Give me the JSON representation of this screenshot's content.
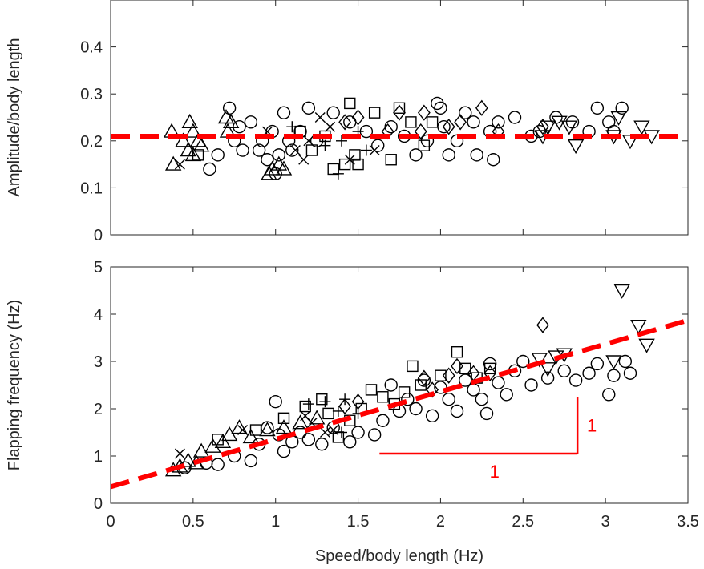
{
  "chart_data": [
    {
      "type": "scatter",
      "xlabel": "",
      "ylabel": "Amplitude/body length",
      "xlim": [
        0,
        3.5
      ],
      "ylim": [
        0,
        0.5
      ],
      "xticks": [],
      "yticks": [
        "0",
        "0.1",
        "0.2",
        "0.3",
        "0.4"
      ],
      "grid": false,
      "fit_line": {
        "type": "constant",
        "y": 0.21,
        "color": "#ff0000",
        "style": "dashed"
      },
      "series": [
        {
          "marker": "triangle-up",
          "points": [
            [
              0.37,
              0.22
            ],
            [
              0.38,
              0.15
            ],
            [
              0.44,
              0.2
            ],
            [
              0.47,
              0.18
            ],
            [
              0.48,
              0.24
            ],
            [
              0.5,
              0.22
            ],
            [
              0.5,
              0.17
            ],
            [
              0.53,
              0.2
            ],
            [
              0.55,
              0.19
            ],
            [
              0.7,
              0.25
            ],
            [
              0.71,
              0.22
            ],
            [
              0.73,
              0.24
            ],
            [
              0.96,
              0.13
            ],
            [
              0.98,
              0.14
            ],
            [
              1.02,
              0.15
            ],
            [
              1.05,
              0.14
            ]
          ]
        },
        {
          "marker": "circle",
          "points": [
            [
              0.6,
              0.14
            ],
            [
              0.65,
              0.17
            ],
            [
              0.72,
              0.27
            ],
            [
              0.75,
              0.2
            ],
            [
              0.78,
              0.23
            ],
            [
              0.8,
              0.18
            ],
            [
              0.85,
              0.24
            ],
            [
              0.9,
              0.18
            ],
            [
              0.92,
              0.2
            ],
            [
              0.95,
              0.16
            ],
            [
              0.98,
              0.22
            ],
            [
              1.0,
              0.13
            ],
            [
              1.02,
              0.17
            ],
            [
              1.05,
              0.26
            ],
            [
              1.08,
              0.2
            ],
            [
              1.1,
              0.18
            ],
            [
              1.15,
              0.22
            ],
            [
              1.2,
              0.27
            ],
            [
              1.25,
              0.2
            ],
            [
              1.35,
              0.26
            ],
            [
              1.45,
              0.24
            ],
            [
              1.55,
              0.22
            ],
            [
              1.62,
              0.19
            ],
            [
              1.7,
              0.23
            ],
            [
              1.78,
              0.21
            ],
            [
              1.85,
              0.17
            ],
            [
              1.92,
              0.2
            ],
            [
              1.98,
              0.28
            ],
            [
              2.0,
              0.27
            ],
            [
              2.02,
              0.23
            ],
            [
              2.05,
              0.17
            ],
            [
              2.1,
              0.2
            ],
            [
              2.15,
              0.26
            ],
            [
              2.2,
              0.24
            ],
            [
              2.22,
              0.17
            ],
            [
              2.3,
              0.22
            ],
            [
              2.32,
              0.16
            ],
            [
              2.35,
              0.24
            ],
            [
              2.45,
              0.25
            ],
            [
              2.55,
              0.21
            ],
            [
              2.6,
              0.22
            ],
            [
              2.7,
              0.25
            ],
            [
              2.8,
              0.24
            ],
            [
              2.9,
              0.22
            ],
            [
              2.95,
              0.27
            ],
            [
              3.02,
              0.24
            ],
            [
              3.05,
              0.22
            ],
            [
              3.1,
              0.27
            ]
          ]
        },
        {
          "marker": "square",
          "points": [
            [
              0.53,
              0.17
            ],
            [
              1.15,
              0.22
            ],
            [
              1.22,
              0.18
            ],
            [
              1.3,
              0.21
            ],
            [
              1.35,
              0.14
            ],
            [
              1.42,
              0.15
            ],
            [
              1.45,
              0.28
            ],
            [
              1.48,
              0.17
            ],
            [
              1.5,
              0.15
            ],
            [
              1.6,
              0.26
            ],
            [
              1.7,
              0.16
            ],
            [
              1.75,
              0.27
            ],
            [
              1.82,
              0.24
            ],
            [
              1.9,
              0.19
            ],
            [
              1.95,
              0.24
            ]
          ]
        },
        {
          "marker": "diamond",
          "points": [
            [
              1.42,
              0.24
            ],
            [
              1.5,
              0.25
            ],
            [
              1.68,
              0.22
            ],
            [
              1.75,
              0.26
            ],
            [
              1.88,
              0.22
            ],
            [
              1.9,
              0.26
            ],
            [
              2.05,
              0.23
            ],
            [
              2.12,
              0.24
            ],
            [
              2.25,
              0.27
            ],
            [
              2.35,
              0.22
            ],
            [
              2.62,
              0.23
            ]
          ]
        },
        {
          "marker": "triangle-down",
          "points": [
            [
              2.62,
              0.21
            ],
            [
              2.65,
              0.23
            ],
            [
              2.72,
              0.24
            ],
            [
              2.78,
              0.23
            ],
            [
              2.82,
              0.19
            ],
            [
              3.05,
              0.21
            ],
            [
              3.08,
              0.25
            ],
            [
              3.15,
              0.2
            ],
            [
              3.22,
              0.23
            ],
            [
              3.28,
              0.21
            ]
          ]
        },
        {
          "marker": "x",
          "points": [
            [
              0.42,
              0.15
            ],
            [
              0.95,
              0.22
            ],
            [
              1.12,
              0.18
            ],
            [
              1.17,
              0.16
            ],
            [
              1.2,
              0.2
            ],
            [
              1.27,
              0.25
            ],
            [
              1.33,
              0.23
            ],
            [
              1.45,
              0.16
            ],
            [
              1.6,
              0.18
            ]
          ]
        },
        {
          "marker": "plus",
          "points": [
            [
              1.1,
              0.23
            ],
            [
              1.3,
              0.19
            ],
            [
              1.38,
              0.13
            ],
            [
              1.4,
              0.2
            ],
            [
              1.5,
              0.22
            ],
            [
              1.55,
              0.18
            ]
          ]
        }
      ]
    },
    {
      "type": "scatter",
      "xlabel": "Speed/body length (Hz)",
      "ylabel": "Flapping frequency (Hz)",
      "xlim": [
        0,
        3.5
      ],
      "ylim": [
        0,
        5
      ],
      "xticks": [
        "0",
        "0.5",
        "1",
        "1.5",
        "2",
        "2.5",
        "3",
        "3.5"
      ],
      "yticks": [
        "0",
        "1",
        "2",
        "3",
        "4",
        "5"
      ],
      "grid": false,
      "fit_line": {
        "type": "linear",
        "x": [
          0,
          3.5
        ],
        "y": [
          0.35,
          3.87
        ],
        "color": "#ff0000",
        "style": "dashed"
      },
      "slope_indicator": {
        "corner": [
          2.83,
          1.05
        ],
        "run_start_x": 1.63,
        "rise_end_y": 2.25,
        "run_label": "1",
        "rise_label": "1",
        "color": "#ff0000"
      },
      "series": [
        {
          "marker": "triangle-up",
          "points": [
            [
              0.38,
              0.7
            ],
            [
              0.42,
              0.78
            ],
            [
              0.47,
              0.9
            ],
            [
              0.52,
              0.85
            ],
            [
              0.55,
              1.1
            ],
            [
              0.62,
              1.2
            ],
            [
              0.68,
              1.3
            ],
            [
              0.72,
              1.45
            ],
            [
              0.78,
              1.6
            ],
            [
              0.85,
              1.4
            ],
            [
              0.95,
              1.55
            ],
            [
              1.05,
              1.6
            ],
            [
              1.15,
              1.7
            ],
            [
              1.25,
              1.8
            ]
          ]
        },
        {
          "marker": "circle",
          "points": [
            [
              0.45,
              0.75
            ],
            [
              0.58,
              0.85
            ],
            [
              0.65,
              0.82
            ],
            [
              0.75,
              1.0
            ],
            [
              0.85,
              0.9
            ],
            [
              0.9,
              1.25
            ],
            [
              0.95,
              1.6
            ],
            [
              1.0,
              2.15
            ],
            [
              1.02,
              1.45
            ],
            [
              1.05,
              1.1
            ],
            [
              1.1,
              1.3
            ],
            [
              1.15,
              1.5
            ],
            [
              1.2,
              1.35
            ],
            [
              1.28,
              1.25
            ],
            [
              1.35,
              1.6
            ],
            [
              1.45,
              1.3
            ],
            [
              1.5,
              1.5
            ],
            [
              1.6,
              1.45
            ],
            [
              1.65,
              1.75
            ],
            [
              1.7,
              2.5
            ],
            [
              1.75,
              1.95
            ],
            [
              1.8,
              2.2
            ],
            [
              1.85,
              2.0
            ],
            [
              1.9,
              2.6
            ],
            [
              1.95,
              1.85
            ],
            [
              2.0,
              2.45
            ],
            [
              2.05,
              2.2
            ],
            [
              2.1,
              1.95
            ],
            [
              2.15,
              2.6
            ],
            [
              2.2,
              2.4
            ],
            [
              2.25,
              2.2
            ],
            [
              2.28,
              1.9
            ],
            [
              2.3,
              2.95
            ],
            [
              2.35,
              2.55
            ],
            [
              2.4,
              2.3
            ],
            [
              2.45,
              2.8
            ],
            [
              2.5,
              3.0
            ],
            [
              2.55,
              2.5
            ],
            [
              2.65,
              2.65
            ],
            [
              2.75,
              2.8
            ],
            [
              2.82,
              2.6
            ],
            [
              2.9,
              2.75
            ],
            [
              2.95,
              2.95
            ],
            [
              3.02,
              2.3
            ],
            [
              3.05,
              2.7
            ],
            [
              3.12,
              3.0
            ],
            [
              3.15,
              2.75
            ]
          ]
        },
        {
          "marker": "square",
          "points": [
            [
              0.65,
              1.35
            ],
            [
              0.88,
              1.55
            ],
            [
              1.05,
              1.8
            ],
            [
              1.18,
              2.05
            ],
            [
              1.28,
              2.2
            ],
            [
              1.32,
              1.9
            ],
            [
              1.38,
              1.4
            ],
            [
              1.45,
              1.75
            ],
            [
              1.52,
              2.0
            ],
            [
              1.58,
              2.4
            ],
            [
              1.65,
              2.25
            ],
            [
              1.72,
              2.1
            ],
            [
              1.78,
              2.35
            ],
            [
              1.83,
              2.9
            ],
            [
              1.88,
              2.5
            ],
            [
              2.0,
              2.7
            ],
            [
              2.1,
              3.2
            ],
            [
              2.15,
              2.85
            ],
            [
              2.22,
              2.65
            ],
            [
              2.3,
              2.85
            ]
          ]
        },
        {
          "marker": "diamond",
          "points": [
            [
              1.42,
              2.05
            ],
            [
              1.5,
              2.15
            ],
            [
              1.9,
              2.65
            ],
            [
              1.95,
              2.4
            ],
            [
              2.05,
              2.7
            ],
            [
              2.1,
              2.9
            ],
            [
              2.2,
              2.75
            ],
            [
              2.3,
              2.75
            ],
            [
              2.62,
              3.77
            ]
          ]
        },
        {
          "marker": "triangle-down",
          "points": [
            [
              2.6,
              3.05
            ],
            [
              2.65,
              2.85
            ],
            [
              2.7,
              3.1
            ],
            [
              2.75,
              3.15
            ],
            [
              3.05,
              3.0
            ],
            [
              3.1,
              4.5
            ],
            [
              3.2,
              3.75
            ],
            [
              3.25,
              3.35
            ]
          ]
        },
        {
          "marker": "x",
          "points": [
            [
              0.42,
              1.05
            ],
            [
              0.8,
              1.55
            ],
            [
              1.18,
              1.85
            ],
            [
              1.22,
              1.7
            ],
            [
              1.3,
              1.5
            ],
            [
              1.35,
              1.55
            ]
          ]
        },
        {
          "marker": "plus",
          "points": [
            [
              1.2,
              2.1
            ],
            [
              1.3,
              2.15
            ],
            [
              1.38,
              1.95
            ],
            [
              1.4,
              1.5
            ],
            [
              1.42,
              2.2
            ],
            [
              1.5,
              1.9
            ]
          ]
        }
      ]
    }
  ]
}
